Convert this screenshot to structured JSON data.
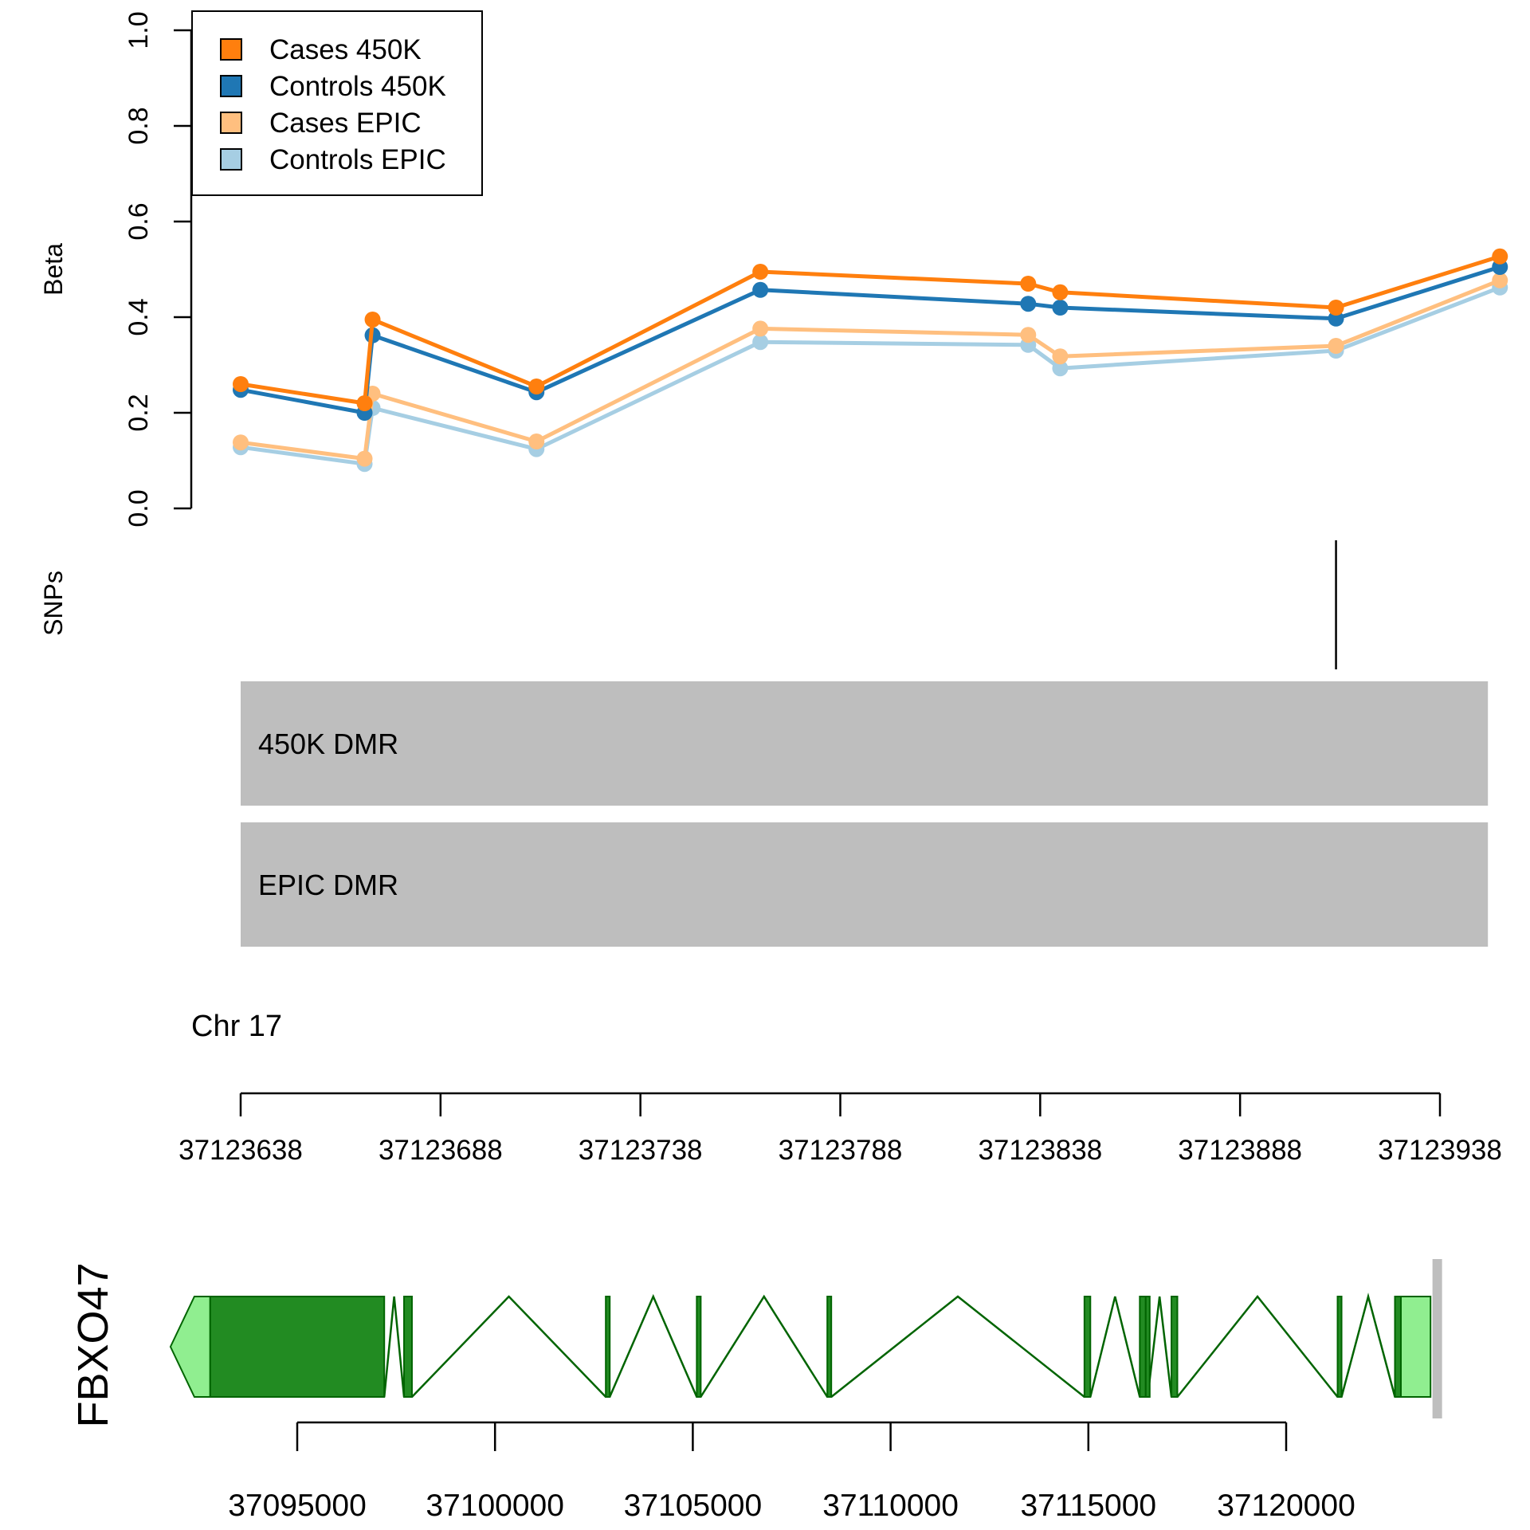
{
  "chart_data": [
    {
      "type": "line",
      "ylabel": "Beta",
      "ylim": [
        0,
        1
      ],
      "y_ticks": [
        "0.0",
        "0.2",
        "0.4",
        "0.6",
        "0.8",
        "1.0"
      ],
      "x_ticks": [
        "37123638",
        "37123688",
        "37123738",
        "37123788",
        "37123838",
        "37123888",
        "37123938"
      ],
      "legend_position": "top-left",
      "series": [
        {
          "name": "Cases 450K",
          "color": "#FF7F0E",
          "points": [
            [
              37123638,
              0.26
            ],
            [
              37123669,
              0.22
            ],
            [
              37123671,
              0.395
            ],
            [
              37123712,
              0.255
            ],
            [
              37123768,
              0.495
            ],
            [
              37123835,
              0.47
            ],
            [
              37123843,
              0.452
            ],
            [
              37123912,
              0.42
            ],
            [
              37123953,
              0.527
            ]
          ]
        },
        {
          "name": "Controls 450K",
          "color": "#1F77B4",
          "points": [
            [
              37123638,
              0.248
            ],
            [
              37123669,
              0.2
            ],
            [
              37123671,
              0.362
            ],
            [
              37123712,
              0.243
            ],
            [
              37123768,
              0.457
            ],
            [
              37123835,
              0.428
            ],
            [
              37123843,
              0.42
            ],
            [
              37123912,
              0.397
            ],
            [
              37123953,
              0.505
            ]
          ]
        },
        {
          "name": "Cases EPIC",
          "color": "#FFBF7F",
          "points": [
            [
              37123638,
              0.138
            ],
            [
              37123669,
              0.104
            ],
            [
              37123671,
              0.24
            ],
            [
              37123712,
              0.14
            ],
            [
              37123768,
              0.376
            ],
            [
              37123835,
              0.363
            ],
            [
              37123843,
              0.318
            ],
            [
              37123912,
              0.34
            ],
            [
              37123953,
              0.477
            ]
          ]
        },
        {
          "name": "Controls EPIC",
          "color": "#A6CEE3",
          "points": [
            [
              37123638,
              0.128
            ],
            [
              37123669,
              0.093
            ],
            [
              37123671,
              0.21
            ],
            [
              37123712,
              0.124
            ],
            [
              37123768,
              0.348
            ],
            [
              37123835,
              0.342
            ],
            [
              37123843,
              0.293
            ],
            [
              37123912,
              0.33
            ],
            [
              37123953,
              0.462
            ]
          ]
        }
      ]
    },
    {
      "type": "track",
      "track_label": "SNPs",
      "snp_positions": [
        37123912
      ]
    },
    {
      "type": "track",
      "regions": [
        {
          "label": "450K DMR",
          "start": 37123638,
          "end": 37123950,
          "color": "#BEBEBE"
        },
        {
          "label": "EPIC DMR",
          "start": 37123638,
          "end": 37123950,
          "color": "#BEBEBE"
        }
      ]
    },
    {
      "type": "axis",
      "chromosome_label": "Chr 17",
      "ticks": [
        "37123638",
        "37123688",
        "37123738",
        "37123788",
        "37123838",
        "37123888",
        "37123938"
      ]
    },
    {
      "type": "gene-model",
      "gene": "FBXO47",
      "strand": "-",
      "exon_color": "#228B22",
      "utr_color": "#90EE90",
      "intron_color": "#006400",
      "highlight_region_color": "#BEBEBE",
      "highlight_region_position": 37123800,
      "ticks": [
        "37095000",
        "37100000",
        "37105000",
        "37110000",
        "37115000",
        "37120000"
      ],
      "utr": [
        [
          37092400,
          37092800
        ],
        [
          37122900,
          37123650
        ]
      ],
      "exons": [
        [
          37092800,
          37097200
        ],
        [
          37097700,
          37097900
        ],
        [
          37102800,
          37102900
        ],
        [
          37105100,
          37105200
        ],
        [
          37108400,
          37108500
        ],
        [
          37114900,
          37115050
        ],
        [
          37116300,
          37116450
        ],
        [
          37116450,
          37116500
        ],
        [
          37117100,
          37117250
        ],
        [
          37121300,
          37121400
        ],
        [
          37122750,
          37122900
        ]
      ]
    }
  ]
}
